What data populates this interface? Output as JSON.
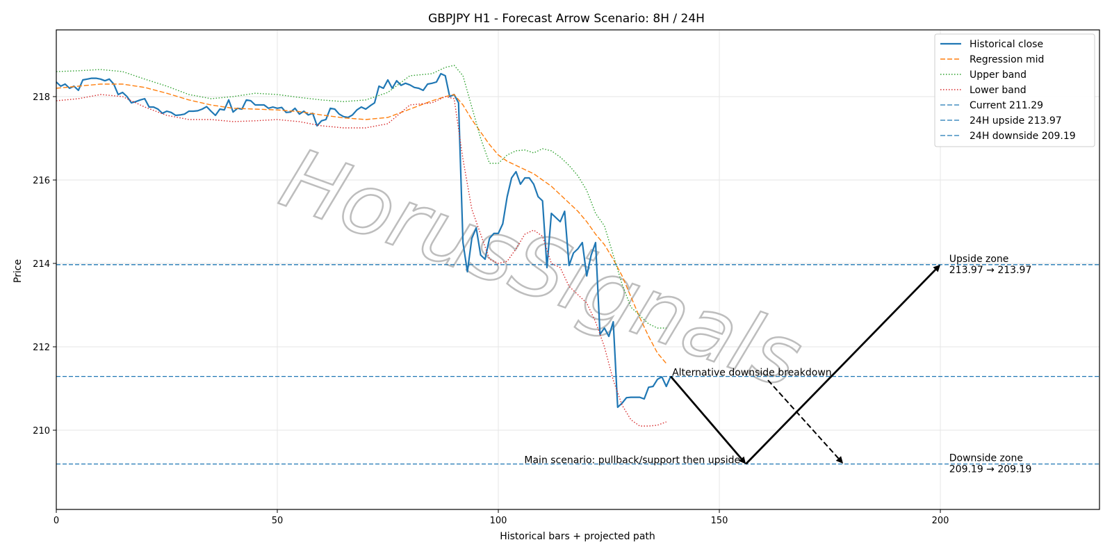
{
  "chart_data": {
    "type": "line",
    "title": "GBPJPY H1 - Forecast Arrow Scenario: 8H / 24H",
    "xlabel": "Historical bars + projected path",
    "ylabel": "Price",
    "xlim": [
      0,
      236
    ],
    "ylim": [
      208.1,
      219.6
    ],
    "xticks": [
      0,
      50,
      100,
      150,
      200
    ],
    "yticks": [
      210,
      212,
      214,
      216,
      218
    ],
    "grid": true,
    "legend_position": "upper right",
    "watermark": "HorusSignals",
    "colors": {
      "historical": "#1f77b4",
      "regression": "#ff7f0e",
      "upper": "#2ca02c",
      "lower": "#d62728",
      "levels": "#1f77b4",
      "arrows": "#000000"
    },
    "series": [
      {
        "name": "Historical close",
        "style": "solid",
        "x": [
          0,
          1,
          2,
          3,
          4,
          5,
          6,
          7,
          8,
          9,
          10,
          11,
          12,
          13,
          14,
          15,
          16,
          17,
          18,
          19,
          20,
          21,
          22,
          23,
          24,
          25,
          26,
          27,
          28,
          29,
          30,
          31,
          32,
          33,
          34,
          35,
          36,
          37,
          38,
          39,
          40,
          41,
          42,
          43,
          44,
          45,
          46,
          47,
          48,
          49,
          50,
          51,
          52,
          53,
          54,
          55,
          56,
          57,
          58,
          59,
          60,
          61,
          62,
          63,
          64,
          65,
          66,
          67,
          68,
          69,
          70,
          71,
          72,
          73,
          74,
          75,
          76,
          77,
          78,
          79,
          80,
          81,
          82,
          83,
          84,
          85,
          86,
          87,
          88,
          89,
          90,
          91,
          92,
          93,
          94,
          95,
          96,
          97,
          98,
          99,
          100,
          101,
          102,
          103,
          104,
          105,
          106,
          107,
          108,
          109,
          110,
          111,
          112,
          113,
          114,
          115,
          116,
          117,
          118,
          119,
          120,
          121,
          122,
          123,
          124,
          125,
          126,
          127,
          128,
          129,
          130,
          131,
          132,
          133,
          134,
          135,
          136,
          137,
          138,
          139
        ],
        "values": [
          218.35,
          218.25,
          218.3,
          218.2,
          218.25,
          218.15,
          218.4,
          218.42,
          218.44,
          218.44,
          218.42,
          218.38,
          218.42,
          218.3,
          218.05,
          218.1,
          218.0,
          217.85,
          217.88,
          217.92,
          217.95,
          217.75,
          217.75,
          217.7,
          217.6,
          217.65,
          217.62,
          217.55,
          217.56,
          217.58,
          217.65,
          217.65,
          217.66,
          217.7,
          217.76,
          217.65,
          217.55,
          217.7,
          217.68,
          217.92,
          217.63,
          217.72,
          217.7,
          217.92,
          217.9,
          217.8,
          217.8,
          217.8,
          217.72,
          217.75,
          217.72,
          217.74,
          217.62,
          217.63,
          217.72,
          217.58,
          217.65,
          217.56,
          217.6,
          217.3,
          217.42,
          217.45,
          217.72,
          217.7,
          217.58,
          217.52,
          217.5,
          217.56,
          217.68,
          217.75,
          217.7,
          217.78,
          217.85,
          218.25,
          218.2,
          218.4,
          218.2,
          218.38,
          218.27,
          218.32,
          218.28,
          218.22,
          218.2,
          218.15,
          218.3,
          218.32,
          218.35,
          218.55,
          218.5,
          218.0,
          218.05,
          217.85,
          214.5,
          213.8,
          214.6,
          214.85,
          214.2,
          214.1,
          214.6,
          214.72,
          214.72,
          214.95,
          215.6,
          216.05,
          216.2,
          215.9,
          216.05,
          216.05,
          215.9,
          215.6,
          215.5,
          213.9,
          215.2,
          215.1,
          215.0,
          215.25,
          213.95,
          214.25,
          214.35,
          214.5,
          213.7,
          214.2,
          214.5,
          212.3,
          212.45,
          212.25,
          212.6,
          210.55,
          210.65,
          210.78,
          210.79,
          210.79,
          210.79,
          210.75,
          211.03,
          211.05,
          211.22,
          211.28,
          211.05,
          211.29
        ]
      },
      {
        "name": "Regression mid",
        "style": "dashed",
        "x": [
          0,
          5,
          10,
          15,
          20,
          25,
          30,
          35,
          40,
          45,
          50,
          55,
          60,
          65,
          70,
          75,
          80,
          85,
          88,
          90,
          92,
          94,
          96,
          98,
          100,
          102,
          104,
          106,
          108,
          110,
          112,
          114,
          116,
          118,
          120,
          122,
          124,
          126,
          128,
          130,
          132,
          134,
          136,
          138
        ],
        "values": [
          218.2,
          218.25,
          218.3,
          218.3,
          218.22,
          218.08,
          217.92,
          217.8,
          217.72,
          217.7,
          217.68,
          217.64,
          217.56,
          217.49,
          217.45,
          217.5,
          217.7,
          217.9,
          218.0,
          218.05,
          217.8,
          217.45,
          217.15,
          216.85,
          216.6,
          216.45,
          216.35,
          216.25,
          216.15,
          216.0,
          215.85,
          215.65,
          215.45,
          215.25,
          215.0,
          214.7,
          214.45,
          214.1,
          213.7,
          213.2,
          212.7,
          212.25,
          211.85,
          211.6
        ]
      },
      {
        "name": "Upper band",
        "style": "dotted",
        "x": [
          0,
          5,
          10,
          15,
          20,
          25,
          30,
          35,
          40,
          45,
          50,
          55,
          60,
          65,
          70,
          75,
          80,
          85,
          88,
          90,
          92,
          94,
          96,
          98,
          100,
          102,
          104,
          106,
          108,
          110,
          112,
          114,
          116,
          118,
          120,
          122,
          124,
          126,
          128,
          130,
          132,
          134,
          136,
          138
        ],
        "values": [
          218.6,
          218.62,
          218.65,
          218.6,
          218.42,
          218.25,
          218.05,
          217.95,
          218.0,
          218.08,
          218.05,
          217.98,
          217.92,
          217.88,
          217.92,
          218.1,
          218.5,
          218.55,
          218.7,
          218.75,
          218.5,
          217.75,
          217.0,
          216.4,
          216.4,
          216.6,
          216.7,
          216.72,
          216.65,
          216.75,
          216.7,
          216.55,
          216.35,
          216.1,
          215.75,
          215.2,
          214.9,
          214.2,
          213.5,
          212.95,
          212.75,
          212.55,
          212.45,
          212.45
        ]
      },
      {
        "name": "Lower band",
        "style": "dotted",
        "x": [
          0,
          5,
          10,
          15,
          20,
          25,
          30,
          35,
          40,
          45,
          50,
          55,
          60,
          65,
          70,
          75,
          80,
          85,
          88,
          90,
          92,
          94,
          96,
          98,
          100,
          102,
          104,
          106,
          108,
          110,
          112,
          114,
          116,
          118,
          120,
          122,
          124,
          126,
          128,
          130,
          132,
          134,
          136,
          138
        ],
        "values": [
          217.9,
          217.95,
          218.05,
          218.0,
          217.75,
          217.55,
          217.45,
          217.45,
          217.4,
          217.42,
          217.45,
          217.4,
          217.3,
          217.25,
          217.25,
          217.35,
          217.8,
          217.85,
          218.0,
          217.95,
          216.5,
          215.3,
          214.7,
          214.1,
          214.0,
          214.05,
          214.35,
          214.7,
          214.8,
          214.65,
          214.0,
          213.9,
          213.45,
          213.25,
          213.05,
          212.6,
          212.0,
          211.2,
          210.6,
          210.25,
          210.1,
          210.1,
          210.12,
          210.2
        ]
      }
    ],
    "hlines": [
      {
        "name": "Current 211.29",
        "y": 211.29
      },
      {
        "name": "24H upside 213.97",
        "y": 213.97
      },
      {
        "name": "24H downside 209.19",
        "y": 209.19
      }
    ],
    "arrows": [
      {
        "style": "solid",
        "x0": 139,
        "y0": 211.29,
        "x1": 156,
        "y1": 209.19
      },
      {
        "style": "solid",
        "x0": 156,
        "y0": 209.19,
        "x1": 200,
        "y1": 213.97
      },
      {
        "style": "dashed",
        "x0": 161,
        "y0": 211.2,
        "x1": 178,
        "y1": 209.2
      }
    ],
    "annotations": {
      "main_scenario": {
        "text": "Main scenario: pullback/support then upside",
        "x": 156,
        "y": 209.19
      },
      "alt_scenario": {
        "text": "Alternative downside breakdown",
        "x": 139,
        "y": 211.29
      },
      "upside_zone": {
        "title": "Upside zone",
        "range": "213.97 → 213.97",
        "x": 202,
        "y": 213.97
      },
      "downside_zone": {
        "title": "Downside zone",
        "range": "209.19 → 209.19",
        "x": 202,
        "y": 209.19
      }
    }
  }
}
